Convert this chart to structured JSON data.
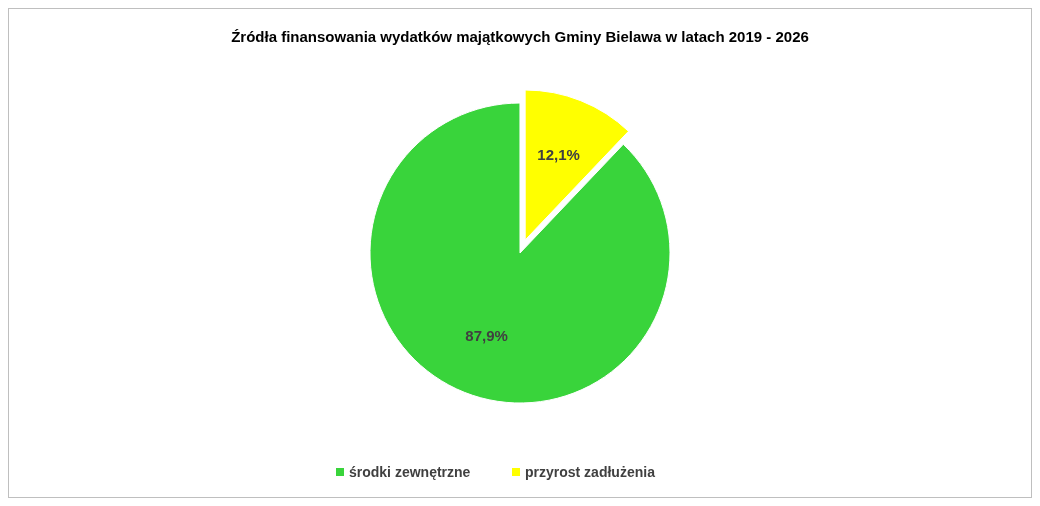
{
  "chart_data": {
    "type": "pie",
    "title": "Źródła finansowania wydatków majątkowych Gminy Bielawa w latach 2019 - 2026",
    "categories": [
      "środki zewnętrzne",
      "przyrost zadłużenia"
    ],
    "values": [
      87.9,
      12.1
    ],
    "colors": [
      "#39d43b",
      "#ffff00"
    ],
    "value_labels": [
      "87,9%",
      "12,1%"
    ],
    "legend": "bottom"
  }
}
